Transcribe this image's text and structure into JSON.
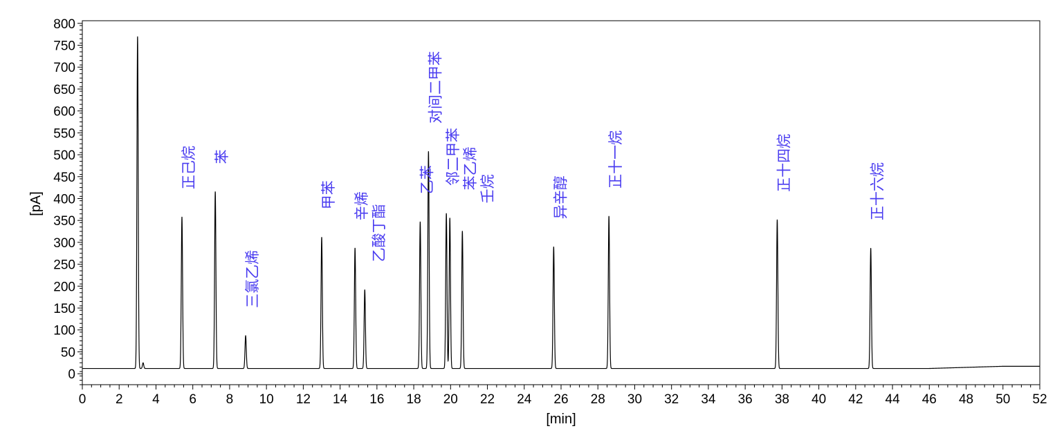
{
  "chart_data": {
    "type": "line",
    "title": "",
    "xlabel": "[min]",
    "ylabel": "[pA]",
    "xlim": [
      0,
      52
    ],
    "ylim": [
      -25,
      806
    ],
    "x_ticks": [
      0,
      2,
      4,
      6,
      8,
      10,
      12,
      14,
      16,
      18,
      20,
      22,
      24,
      26,
      28,
      30,
      32,
      34,
      36,
      38,
      40,
      42,
      44,
      46,
      48,
      50,
      52
    ],
    "y_ticks": [
      0,
      50,
      100,
      150,
      200,
      250,
      300,
      350,
      400,
      450,
      500,
      550,
      600,
      650,
      700,
      750,
      800
    ],
    "grid": false,
    "baseline_start": 12,
    "baseline_end": 17,
    "peak_color": "#000000",
    "label_color": "#4a3cf0",
    "peaks": [
      {
        "rt": 3.0,
        "height": 770,
        "label": ""
      },
      {
        "rt": 3.3,
        "height": 25,
        "label": ""
      },
      {
        "rt": 5.41,
        "height": 358,
        "label": "正己烷"
      },
      {
        "rt": 7.22,
        "height": 416,
        "label": "苯"
      },
      {
        "rt": 8.87,
        "height": 87,
        "label": "三氯乙烯"
      },
      {
        "rt": 13.0,
        "height": 312,
        "label": "甲苯"
      },
      {
        "rt": 14.81,
        "height": 287,
        "label": "辛烯"
      },
      {
        "rt": 15.34,
        "height": 192,
        "label": "乙酸丁酯"
      },
      {
        "rt": 18.35,
        "height": 347,
        "label": "乙苯"
      },
      {
        "rt": 18.8,
        "height": 508,
        "label": "对间二甲苯"
      },
      {
        "rt": 19.77,
        "height": 366,
        "label": "邻二甲苯"
      },
      {
        "rt": 19.96,
        "height": 356,
        "label": "苯乙烯"
      },
      {
        "rt": 20.64,
        "height": 326,
        "label": "壬烷"
      },
      {
        "rt": 25.6,
        "height": 290,
        "label": "异辛醇"
      },
      {
        "rt": 28.6,
        "height": 360,
        "label": "正十一烷"
      },
      {
        "rt": 37.74,
        "height": 352,
        "label": "正十四烷"
      },
      {
        "rt": 42.82,
        "height": 287,
        "label": "正十六烷"
      }
    ]
  }
}
